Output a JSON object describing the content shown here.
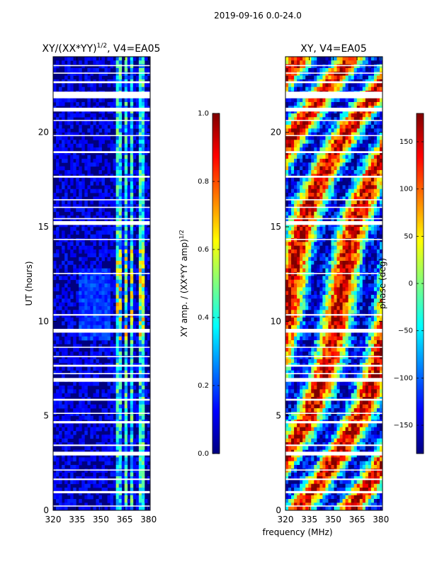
{
  "suptitle": "2019-09-16 0.0-24.0",
  "xlabel_shared": "frequency (MHz)",
  "colors": {
    "jet": [
      "#00007f",
      "#0000ff",
      "#007fff",
      "#00ffff",
      "#7fff7f",
      "#ffff00",
      "#ff7f00",
      "#ff0000",
      "#7f0000"
    ],
    "frame": "#000000",
    "gap": "#ffffff"
  },
  "chart_data": [
    {
      "type": "heatmap",
      "title": "XY/(XX*YY)^{1/2}, V4=EA05",
      "title_main": "XY/(XX*YY)",
      "title_exp": "1/2",
      "title_tail": ", V4=EA05",
      "xlabel": "",
      "ylabel": "UT (hours)",
      "xlim": [
        320,
        381
      ],
      "ylim": [
        0,
        24
      ],
      "xticks": [
        320,
        335,
        350,
        365,
        380
      ],
      "yticks": [
        0,
        5,
        10,
        15,
        20
      ],
      "colorbar": {
        "label": "XY amp. / (XX*YY amp)^{1/2}",
        "label_main": "XY amp. / (XX*YY amp)",
        "label_exp": "1/2",
        "range": [
          0.0,
          1.0
        ],
        "ticks": [
          "0.0",
          "0.2",
          "0.4",
          "0.6",
          "0.8",
          "1.0"
        ]
      }
    },
    {
      "type": "heatmap",
      "title": "XY, V4=EA05",
      "xlabel": "frequency (MHz)",
      "ylabel": "",
      "xlim": [
        320,
        381
      ],
      "ylim": [
        0,
        24
      ],
      "xticks": [
        320,
        335,
        350,
        365,
        380
      ],
      "yticks": [
        0,
        5,
        10,
        15,
        20
      ],
      "colorbar": {
        "label": "phase (deg)",
        "range": [
          -180,
          180
        ],
        "ticks": [
          "−150",
          "−100",
          "−50",
          "0",
          "50",
          "100",
          "150"
        ]
      }
    }
  ]
}
